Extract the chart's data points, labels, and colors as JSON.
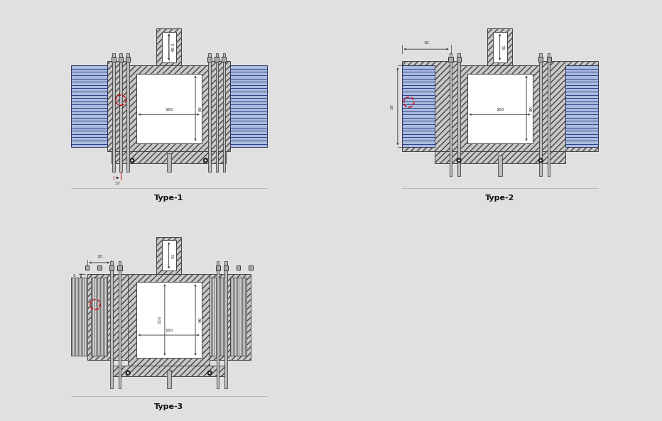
{
  "label_type1": "Type-1",
  "label_type2": "Type-2",
  "label_type3": "Type-3",
  "dim_49_5": "49.5",
  "dim_160": "160",
  "dim_90": "90",
  "dim_37": "37",
  "dim_51": "51",
  "dim_10": "10",
  "dim_5": "5",
  "dim_116": "116",
  "bg_color": "#e0e0e0",
  "panel_bg": "#ffffff",
  "hatch_fc": "#c8c8c8",
  "hatch_pattern": "////",
  "blue_bg": "#8899cc",
  "blue_line": "#1a2d80",
  "grey_line": "#555555",
  "lc": "#333333",
  "red": "#cc0000"
}
